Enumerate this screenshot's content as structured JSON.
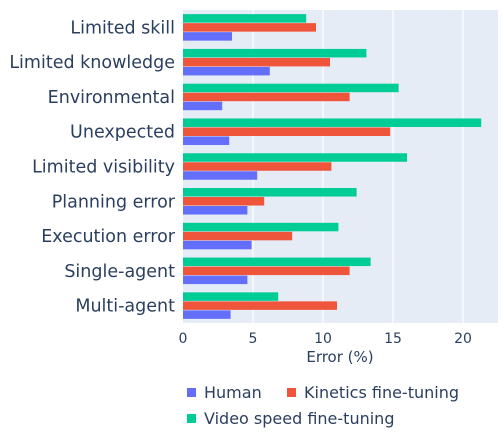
{
  "chart_data": {
    "type": "bar",
    "orientation": "horizontal",
    "categories": [
      "Limited skill",
      "Limited knowledge",
      "Environmental",
      "Unexpected",
      "Limited visibility",
      "Planning error",
      "Execution error",
      "Single-agent",
      "Multi-agent"
    ],
    "series": [
      {
        "name": "Video speed fine-tuning",
        "color": "#00cc96",
        "values": [
          8.8,
          13.1,
          15.4,
          21.3,
          16.0,
          12.4,
          11.1,
          13.4,
          6.8
        ]
      },
      {
        "name": "Kinetics fine-tuning",
        "color": "#ef553b",
        "values": [
          9.5,
          10.5,
          11.9,
          14.8,
          10.6,
          5.8,
          7.8,
          11.9,
          11.0
        ]
      },
      {
        "name": "Human",
        "color": "#636efa",
        "values": [
          3.5,
          6.2,
          2.8,
          3.3,
          5.3,
          4.6,
          4.9,
          4.6,
          3.4
        ]
      }
    ],
    "xlabel": "Error (%)",
    "xlim": [
      0,
      22.5
    ],
    "xticks": [
      0,
      5,
      10,
      15,
      20
    ],
    "xtick_labels": [
      "0",
      "5",
      "10",
      "15",
      "20"
    ],
    "grid": true,
    "plot_background": "#e5ecf6",
    "legend": {
      "position": "bottom",
      "items": [
        {
          "label": "Human",
          "color": "#636efa"
        },
        {
          "label": "Kinetics fine-tuning",
          "color": "#ef553b"
        },
        {
          "label": "Video speed fine-tuning",
          "color": "#00cc96"
        }
      ]
    }
  }
}
